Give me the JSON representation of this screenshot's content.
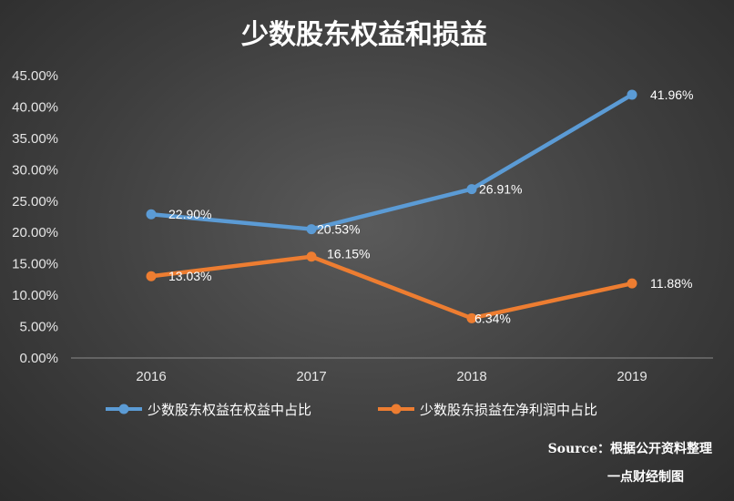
{
  "chart_data": {
    "type": "line",
    "title": "少数股东权益和损益",
    "categories": [
      "2016",
      "2017",
      "2018",
      "2019"
    ],
    "ylim": [
      0,
      45
    ],
    "yticks": [
      "0.00%",
      "5.00%",
      "10.00%",
      "15.00%",
      "20.00%",
      "25.00%",
      "30.00%",
      "35.00%",
      "40.00%",
      "45.00%"
    ],
    "grid": false,
    "legend_position": "bottom",
    "series": [
      {
        "name": "少数股东权益在权益中占比",
        "color": "#5b9bd5",
        "values": [
          22.9,
          20.53,
          26.91,
          41.96
        ],
        "labels": [
          "22.90%",
          "20.53%",
          "26.91%",
          "41.96%"
        ]
      },
      {
        "name": "少数股东损益在净利润中占比",
        "color": "#ed7d31",
        "values": [
          13.03,
          16.15,
          6.34,
          11.88
        ],
        "labels": [
          "13.03%",
          "16.15%",
          "6.34%",
          "11.88%"
        ]
      }
    ]
  },
  "footer": {
    "source": "Source：根据公开资料整理",
    "credit": "一点财经制图"
  }
}
